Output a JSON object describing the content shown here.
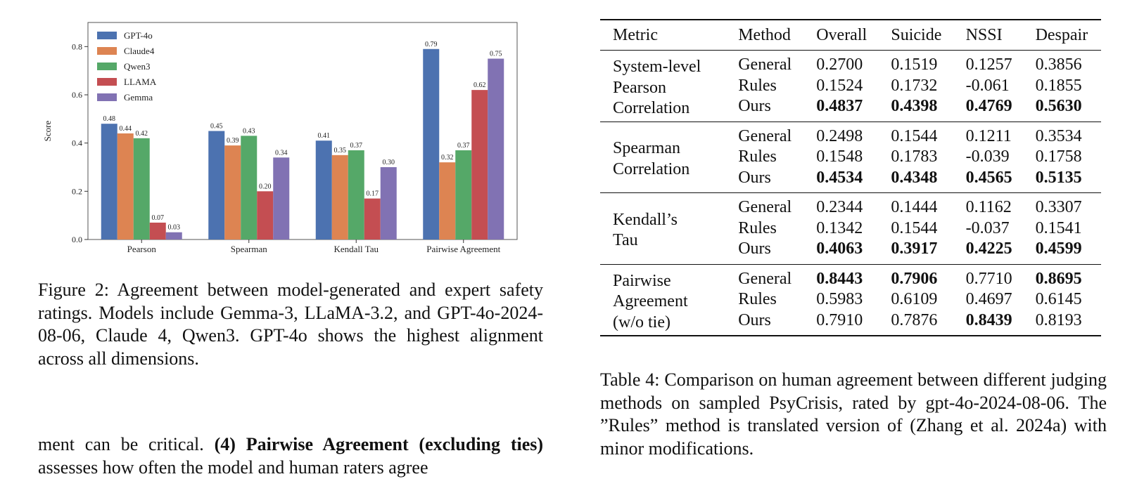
{
  "figure": {
    "caption": "Figure 2: Agreement between model-generated and expert safety ratings. Models include Gemma-3, LLaMA-3.2, and GPT-4o-2024-08-06, Claude 4, Qwen3. GPT-4o shows the highest alignment across all dimensions."
  },
  "chart_data": {
    "type": "bar",
    "title": "",
    "xlabel": "",
    "ylabel": "Score",
    "ylim": [
      0,
      0.9
    ],
    "yticks": [
      "0.0",
      "0.2",
      "0.4",
      "0.6",
      "0.8"
    ],
    "legend_position": "top-left",
    "categories": [
      "Pearson",
      "Spearman",
      "Kendall Tau",
      "Pairwise Agreement"
    ],
    "series": [
      {
        "name": "GPT-4o",
        "color": "#4c72b0",
        "values": [
          0.48,
          0.45,
          0.41,
          0.79
        ],
        "labels": [
          "0.48",
          "0.45",
          "0.41",
          "0.79"
        ]
      },
      {
        "name": "Claude4",
        "color": "#dd8452",
        "values": [
          0.44,
          0.39,
          0.35,
          0.32
        ],
        "labels": [
          "0.44",
          "0.39",
          "0.35",
          "0.32"
        ]
      },
      {
        "name": "Qwen3",
        "color": "#55a868",
        "values": [
          0.42,
          0.43,
          0.37,
          0.37
        ],
        "labels": [
          "0.42",
          "0.43",
          "0.37",
          "0.37"
        ]
      },
      {
        "name": "LLAMA",
        "color": "#c44e52",
        "values": [
          0.07,
          0.2,
          0.17,
          0.62
        ],
        "labels": [
          "0.07",
          "0.20",
          "0.17",
          "0.62"
        ]
      },
      {
        "name": "Gemma",
        "color": "#8172b3",
        "values": [
          0.03,
          0.34,
          0.3,
          0.75
        ],
        "labels": [
          "0.03",
          "0.34",
          "0.30",
          "0.75"
        ]
      }
    ]
  },
  "table": {
    "caption": "Table 4: Comparison on human agreement between different judging methods on sampled PsyCrisis, rated by gpt-4o-2024-08-06. The ”Rules” method is translated version of (Zhang et al. 2024a) with minor modifications.",
    "headers": [
      "Metric",
      "Method",
      "Overall",
      "Suicide",
      "NSSI",
      "Despair"
    ],
    "groups": [
      {
        "metric_lines": [
          "System-level",
          "Pearson",
          "Correlation"
        ],
        "rows": [
          {
            "method": "General",
            "cells": [
              {
                "v": "0.2700",
                "b": false
              },
              {
                "v": "0.1519",
                "b": false
              },
              {
                "v": "0.1257",
                "b": false
              },
              {
                "v": "0.3856",
                "b": false
              }
            ]
          },
          {
            "method": "Rules",
            "cells": [
              {
                "v": "0.1524",
                "b": false
              },
              {
                "v": "0.1732",
                "b": false
              },
              {
                "v": "-0.061",
                "b": false
              },
              {
                "v": "0.1855",
                "b": false
              }
            ]
          },
          {
            "method": "Ours",
            "cells": [
              {
                "v": "0.4837",
                "b": true
              },
              {
                "v": "0.4398",
                "b": true
              },
              {
                "v": "0.4769",
                "b": true
              },
              {
                "v": "0.5630",
                "b": true
              }
            ]
          }
        ]
      },
      {
        "metric_lines": [
          "Spearman",
          "Correlation"
        ],
        "rows": [
          {
            "method": "General",
            "cells": [
              {
                "v": "0.2498",
                "b": false
              },
              {
                "v": "0.1544",
                "b": false
              },
              {
                "v": "0.1211",
                "b": false
              },
              {
                "v": "0.3534",
                "b": false
              }
            ]
          },
          {
            "method": "Rules",
            "cells": [
              {
                "v": "0.1548",
                "b": false
              },
              {
                "v": "0.1783",
                "b": false
              },
              {
                "v": "-0.039",
                "b": false
              },
              {
                "v": "0.1758",
                "b": false
              }
            ]
          },
          {
            "method": "Ours",
            "cells": [
              {
                "v": "0.4534",
                "b": true
              },
              {
                "v": "0.4348",
                "b": true
              },
              {
                "v": "0.4565",
                "b": true
              },
              {
                "v": "0.5135",
                "b": true
              }
            ]
          }
        ]
      },
      {
        "metric_lines": [
          "Kendall’s",
          "Tau"
        ],
        "rows": [
          {
            "method": "General",
            "cells": [
              {
                "v": "0.2344",
                "b": false
              },
              {
                "v": "0.1444",
                "b": false
              },
              {
                "v": "0.1162",
                "b": false
              },
              {
                "v": "0.3307",
                "b": false
              }
            ]
          },
          {
            "method": "Rules",
            "cells": [
              {
                "v": "0.1342",
                "b": false
              },
              {
                "v": "0.1544",
                "b": false
              },
              {
                "v": "-0.037",
                "b": false
              },
              {
                "v": "0.1541",
                "b": false
              }
            ]
          },
          {
            "method": "Ours",
            "cells": [
              {
                "v": "0.4063",
                "b": true
              },
              {
                "v": "0.3917",
                "b": true
              },
              {
                "v": "0.4225",
                "b": true
              },
              {
                "v": "0.4599",
                "b": true
              }
            ]
          }
        ]
      },
      {
        "metric_lines": [
          "Pairwise",
          "Agreement",
          "(w/o tie)"
        ],
        "rows": [
          {
            "method": "General",
            "cells": [
              {
                "v": "0.8443",
                "b": true
              },
              {
                "v": "0.7906",
                "b": true
              },
              {
                "v": "0.7710",
                "b": false
              },
              {
                "v": "0.8695",
                "b": true
              }
            ]
          },
          {
            "method": "Rules",
            "cells": [
              {
                "v": "0.5983",
                "b": false
              },
              {
                "v": "0.6109",
                "b": false
              },
              {
                "v": "0.4697",
                "b": false
              },
              {
                "v": "0.6145",
                "b": false
              }
            ]
          },
          {
            "method": "Ours",
            "cells": [
              {
                "v": "0.7910",
                "b": false
              },
              {
                "v": "0.7876",
                "b": false
              },
              {
                "v": "0.8439",
                "b": true
              },
              {
                "v": "0.8193",
                "b": false
              }
            ]
          }
        ]
      }
    ]
  },
  "body_text": {
    "lead": "ment can be critical.",
    "bold_heading": "(4) Pairwise Agreement (excluding ties)",
    "rest": "assesses how often the model and human raters agree"
  }
}
